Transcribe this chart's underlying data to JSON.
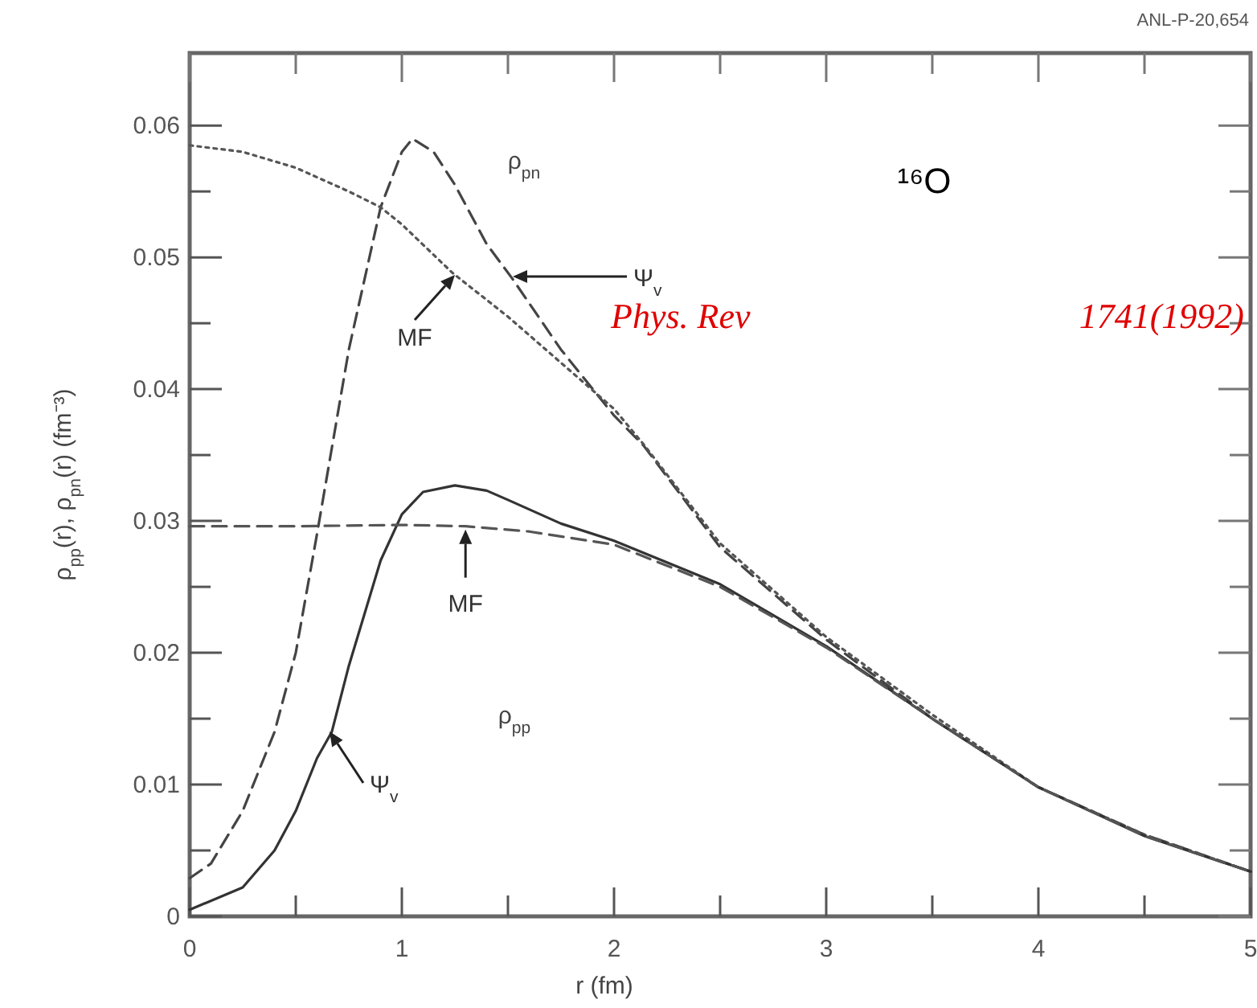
{
  "chart_data": {
    "type": "line",
    "xlabel": "r (fm)",
    "ylabel": "ρ$_{pp}$(r), ρ$_{pn}$(r) (fm⁻³)",
    "xlim": [
      0,
      5
    ],
    "ylim": [
      0,
      0.0655
    ],
    "xticks": [
      0,
      {
        "value": 0.5,
        "label": null
      },
      1,
      {
        "value": 1.5,
        "label": null
      },
      2,
      {
        "value": 2.5,
        "label": null
      },
      3,
      {
        "value": 3.5,
        "label": null
      },
      4,
      {
        "value": 4.5,
        "label": null
      },
      5
    ],
    "yticks": [
      0,
      {
        "value": 0.005,
        "label": null
      },
      0.01,
      {
        "value": 0.015,
        "label": null
      },
      0.02,
      {
        "value": 0.025,
        "label": null
      },
      0.03,
      {
        "value": 0.035,
        "label": null
      },
      0.04,
      {
        "value": 0.045,
        "label": null
      },
      0.05,
      {
        "value": 0.055,
        "label": null
      },
      0.06
    ],
    "grid": false,
    "series": [
      {
        "color": "#444444",
        "line_style": "dashed",
        "x": [
          0,
          0.1,
          0.25,
          0.4,
          0.5,
          0.6,
          0.75,
          0.9,
          1.0,
          1.05,
          1.15,
          1.25,
          1.4,
          1.52,
          1.75,
          2,
          2.14,
          2.5,
          3,
          3.5,
          4,
          4.5,
          5
        ],
        "values": [
          0.0029,
          0.004,
          0.008,
          0.014,
          0.02,
          0.029,
          0.043,
          0.0538,
          0.058,
          0.059,
          0.058,
          0.0555,
          0.051,
          0.0484,
          0.043,
          0.038,
          0.0357,
          0.028,
          0.021,
          0.015,
          0.0098,
          0.0062,
          0.0034
        ]
      },
      {
        "color": "#555555",
        "line_style": "dotted",
        "x": [
          0,
          0.25,
          0.5,
          0.75,
          0.9,
          1.0,
          1.24,
          1.5,
          1.75,
          2,
          2.14,
          2.5,
          3,
          3.5,
          4,
          4.5,
          5
        ],
        "values": [
          0.0585,
          0.058,
          0.0568,
          0.055,
          0.0538,
          0.0525,
          0.0488,
          0.0455,
          0.042,
          0.0385,
          0.0358,
          0.0283,
          0.0212,
          0.0153,
          0.0098,
          0.0062,
          0.0034
        ]
      },
      {
        "color": "#333333",
        "line_style": "solid",
        "x": [
          0,
          0.25,
          0.4,
          0.5,
          0.6,
          0.67,
          0.75,
          0.9,
          1.0,
          1.1,
          1.25,
          1.4,
          1.5,
          1.75,
          2,
          2.5,
          3,
          3.5,
          4,
          4.5,
          5
        ],
        "values": [
          0.0005,
          0.0022,
          0.005,
          0.008,
          0.012,
          0.014,
          0.019,
          0.027,
          0.0305,
          0.0322,
          0.0327,
          0.0323,
          0.0316,
          0.0298,
          0.0285,
          0.0252,
          0.0205,
          0.015,
          0.0098,
          0.0061,
          0.0034
        ]
      },
      {
        "color": "#555555",
        "line_style": "dashed",
        "x": [
          0,
          0.5,
          1.0,
          1.3,
          1.6,
          2,
          2.5,
          3,
          3.5,
          4,
          4.5,
          5
        ],
        "values": [
          0.0296,
          0.0296,
          0.0297,
          0.0296,
          0.0292,
          0.0282,
          0.025,
          0.0204,
          0.015,
          0.0098,
          0.0061,
          0.0034
        ]
      }
    ],
    "annotations": [
      "ANL-P-20,654",
      "¹⁶O",
      "Phys. Rev",
      "1741(1992)",
      "ρ$_{pn}$",
      "ρ$_{pp}$",
      "Ψ$_{v}$",
      "MF",
      {
        "text": "MF",
        "x": 1.3,
        "y": 0.0296
      },
      "Ψ$_{v}$"
    ]
  }
}
